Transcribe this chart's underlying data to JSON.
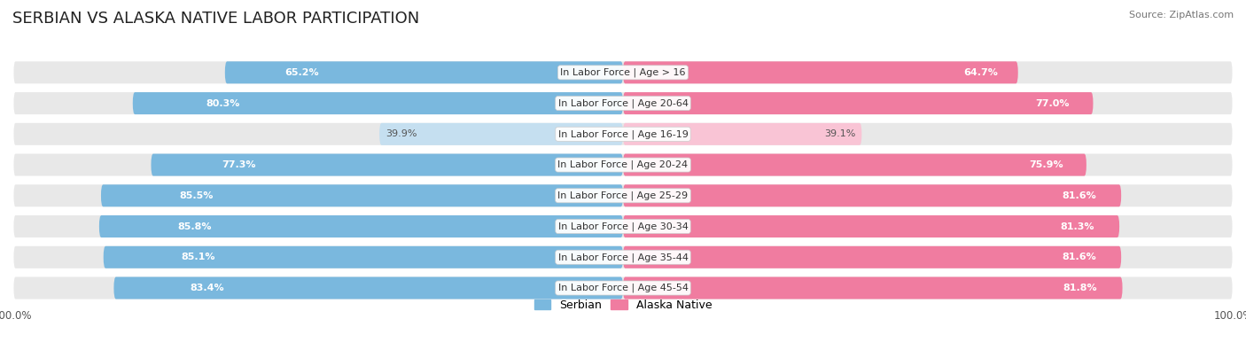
{
  "title": "SERBIAN VS ALASKA NATIVE LABOR PARTICIPATION",
  "source": "Source: ZipAtlas.com",
  "categories": [
    "In Labor Force | Age > 16",
    "In Labor Force | Age 20-64",
    "In Labor Force | Age 16-19",
    "In Labor Force | Age 20-24",
    "In Labor Force | Age 25-29",
    "In Labor Force | Age 30-34",
    "In Labor Force | Age 35-44",
    "In Labor Force | Age 45-54"
  ],
  "serbian_values": [
    65.2,
    80.3,
    39.9,
    77.3,
    85.5,
    85.8,
    85.1,
    83.4
  ],
  "alaska_values": [
    64.7,
    77.0,
    39.1,
    75.9,
    81.6,
    81.3,
    81.6,
    81.8
  ],
  "serbian_color": "#7ab8de",
  "serbian_color_light": "#c5dff0",
  "alaska_color": "#f07ca0",
  "alaska_color_light": "#f9c4d5",
  "row_bg_color": "#e8e8e8",
  "max_value": 100.0,
  "legend_serbian": "Serbian",
  "legend_alaska": "Alaska Native",
  "title_fontsize": 13,
  "bar_height": 0.72,
  "background_color": "#ffffff",
  "value_label_fontsize": 8.0,
  "category_fontsize": 8.0
}
